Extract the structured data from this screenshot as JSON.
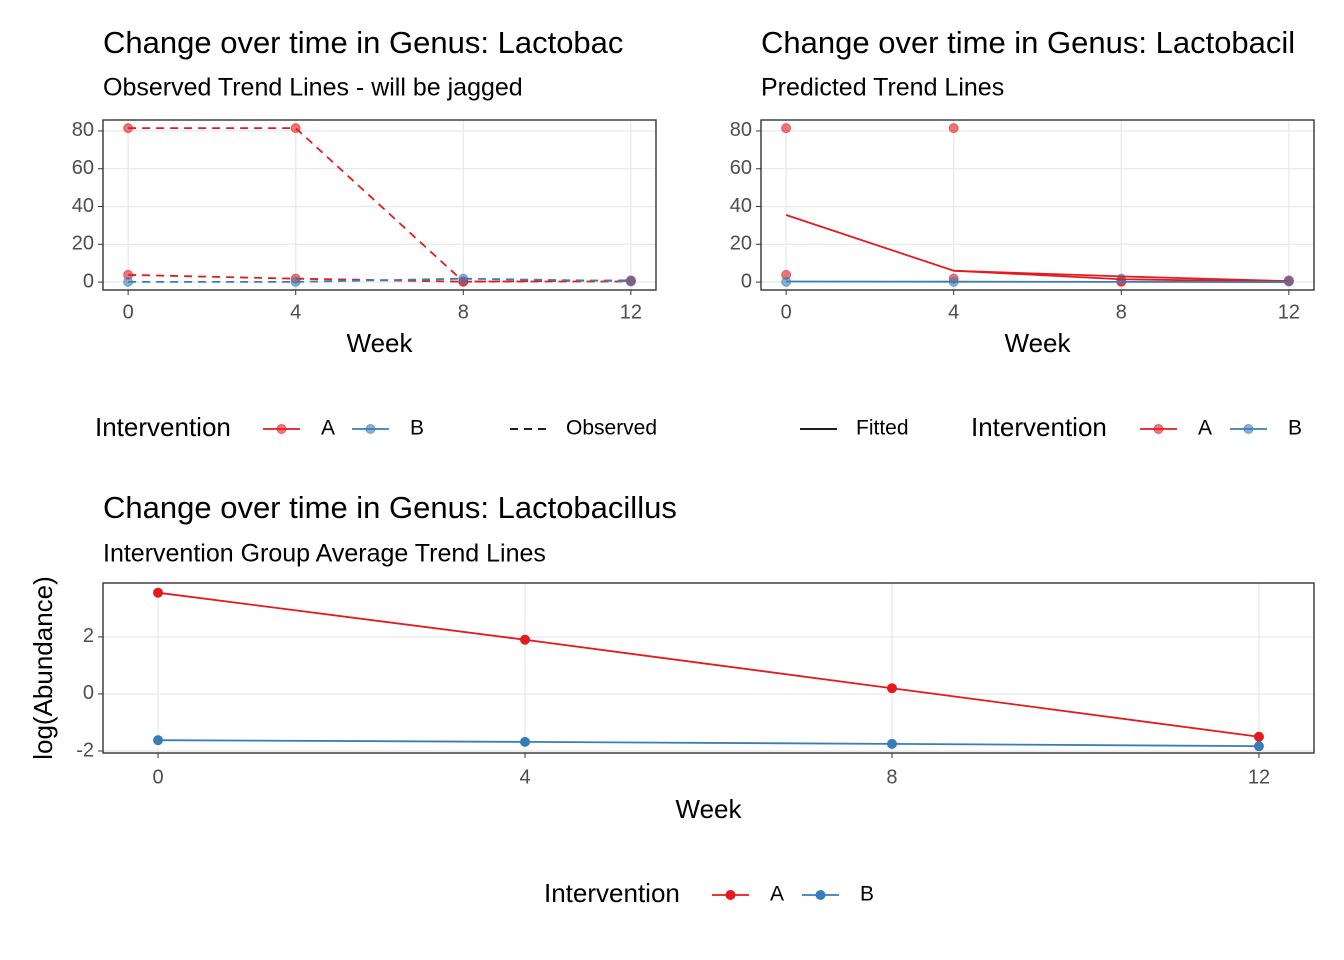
{
  "chart_data": [
    {
      "type": "line",
      "title": "Change over time in Genus: Lactobac",
      "subtitle": "Observed Trend Lines - will be jagged",
      "xlabel": "Week",
      "x": [
        0,
        4,
        8,
        12
      ],
      "xlim": [
        -0.6,
        12.6
      ],
      "xticks": [
        0,
        4,
        8,
        12
      ],
      "ylim": [
        -4.2,
        85.8
      ],
      "yticks": [
        0,
        20,
        40,
        60,
        80
      ],
      "grid": true,
      "point_alpha": 0.6,
      "series": [
        {
          "color": "#e41a1c",
          "linetype": "dashed",
          "marker": "circle",
          "values": [
            81.5,
            81.5,
            0.3,
            0.3
          ]
        },
        {
          "color": "#e41a1c",
          "linetype": "dashed",
          "marker": "circle",
          "values": [
            3.8,
            1.8,
            0.2,
            0.9
          ]
        },
        {
          "color": "#377eb8",
          "linetype": "dashed",
          "marker": "circle",
          "values": [
            0.1,
            0.1,
            1.8,
            0.5
          ]
        }
      ],
      "legend": {
        "position": "bottom",
        "title": "Intervention",
        "entries": [
          {
            "name": "A",
            "color": "#e41a1c"
          },
          {
            "name": "B",
            "color": "#377eb8"
          }
        ]
      },
      "linetype_legend": {
        "name": "Observed",
        "linetype": "dashed"
      }
    },
    {
      "type": "line",
      "title": "Change over time in Genus: Lactobacil",
      "subtitle": "Predicted Trend Lines",
      "xlabel": "Week",
      "x": [
        0,
        4,
        8,
        12
      ],
      "xlim": [
        -0.6,
        12.6
      ],
      "xticks": [
        0,
        4,
        8,
        12
      ],
      "ylim": [
        -4.2,
        85.8
      ],
      "yticks": [
        0,
        20,
        40,
        60,
        80
      ],
      "grid": true,
      "point_alpha": 0.6,
      "series": [
        {
          "color": "#e41a1c",
          "linetype": "none",
          "marker": "circle",
          "values": [
            81.5,
            81.5,
            0.3,
            0.3
          ]
        },
        {
          "color": "#e41a1c",
          "linetype": "none",
          "marker": "circle",
          "values": [
            3.8,
            1.8,
            0.2,
            0.9
          ]
        },
        {
          "color": "#377eb8",
          "linetype": "none",
          "marker": "circle",
          "values": [
            0.1,
            0.1,
            1.8,
            0.5
          ]
        },
        {
          "color": "#e41a1c",
          "linetype": "solid",
          "marker": "none",
          "values": [
            35.5,
            6,
            1.5,
            0.2
          ]
        },
        {
          "color": "#e41a1c",
          "linetype": "solid",
          "marker": "none",
          "values": [
            null,
            6,
            3,
            0.5
          ]
        },
        {
          "color": "#377eb8",
          "linetype": "solid",
          "marker": "none",
          "values": [
            0.3,
            0.2,
            0.1,
            0
          ]
        }
      ],
      "legend": {
        "position": "bottom",
        "title": "Intervention",
        "entries": [
          {
            "name": "A",
            "color": "#e41a1c"
          },
          {
            "name": "B",
            "color": "#377eb8"
          }
        ]
      },
      "linetype_legend": {
        "name": "Fitted",
        "linetype": "solid"
      }
    },
    {
      "type": "line",
      "title": "Change over time in Genus: Lactobacillus",
      "subtitle": "Intervention Group Average Trend Lines",
      "xlabel": "Week",
      "ylabel": "log(Abundance)",
      "x": [
        0,
        4,
        8,
        12
      ],
      "xlim": [
        -0.6,
        12.6
      ],
      "xticks": [
        0,
        4,
        8,
        12
      ],
      "ylim": [
        -2.07,
        3.89
      ],
      "yticks": [
        -2,
        0,
        2
      ],
      "grid": true,
      "point_alpha": 1,
      "series": [
        {
          "color": "#e41a1c",
          "linetype": "solid",
          "marker": "circle",
          "values": [
            3.55,
            1.9,
            0.2,
            -1.5
          ]
        },
        {
          "color": "#377eb8",
          "linetype": "solid",
          "marker": "circle",
          "values": [
            -1.62,
            -1.68,
            -1.75,
            -1.83
          ]
        }
      ],
      "legend": {
        "position": "bottom",
        "title": "Intervention",
        "entries": [
          {
            "name": "A",
            "color": "#e41a1c"
          },
          {
            "name": "B",
            "color": "#377eb8"
          }
        ]
      }
    }
  ]
}
